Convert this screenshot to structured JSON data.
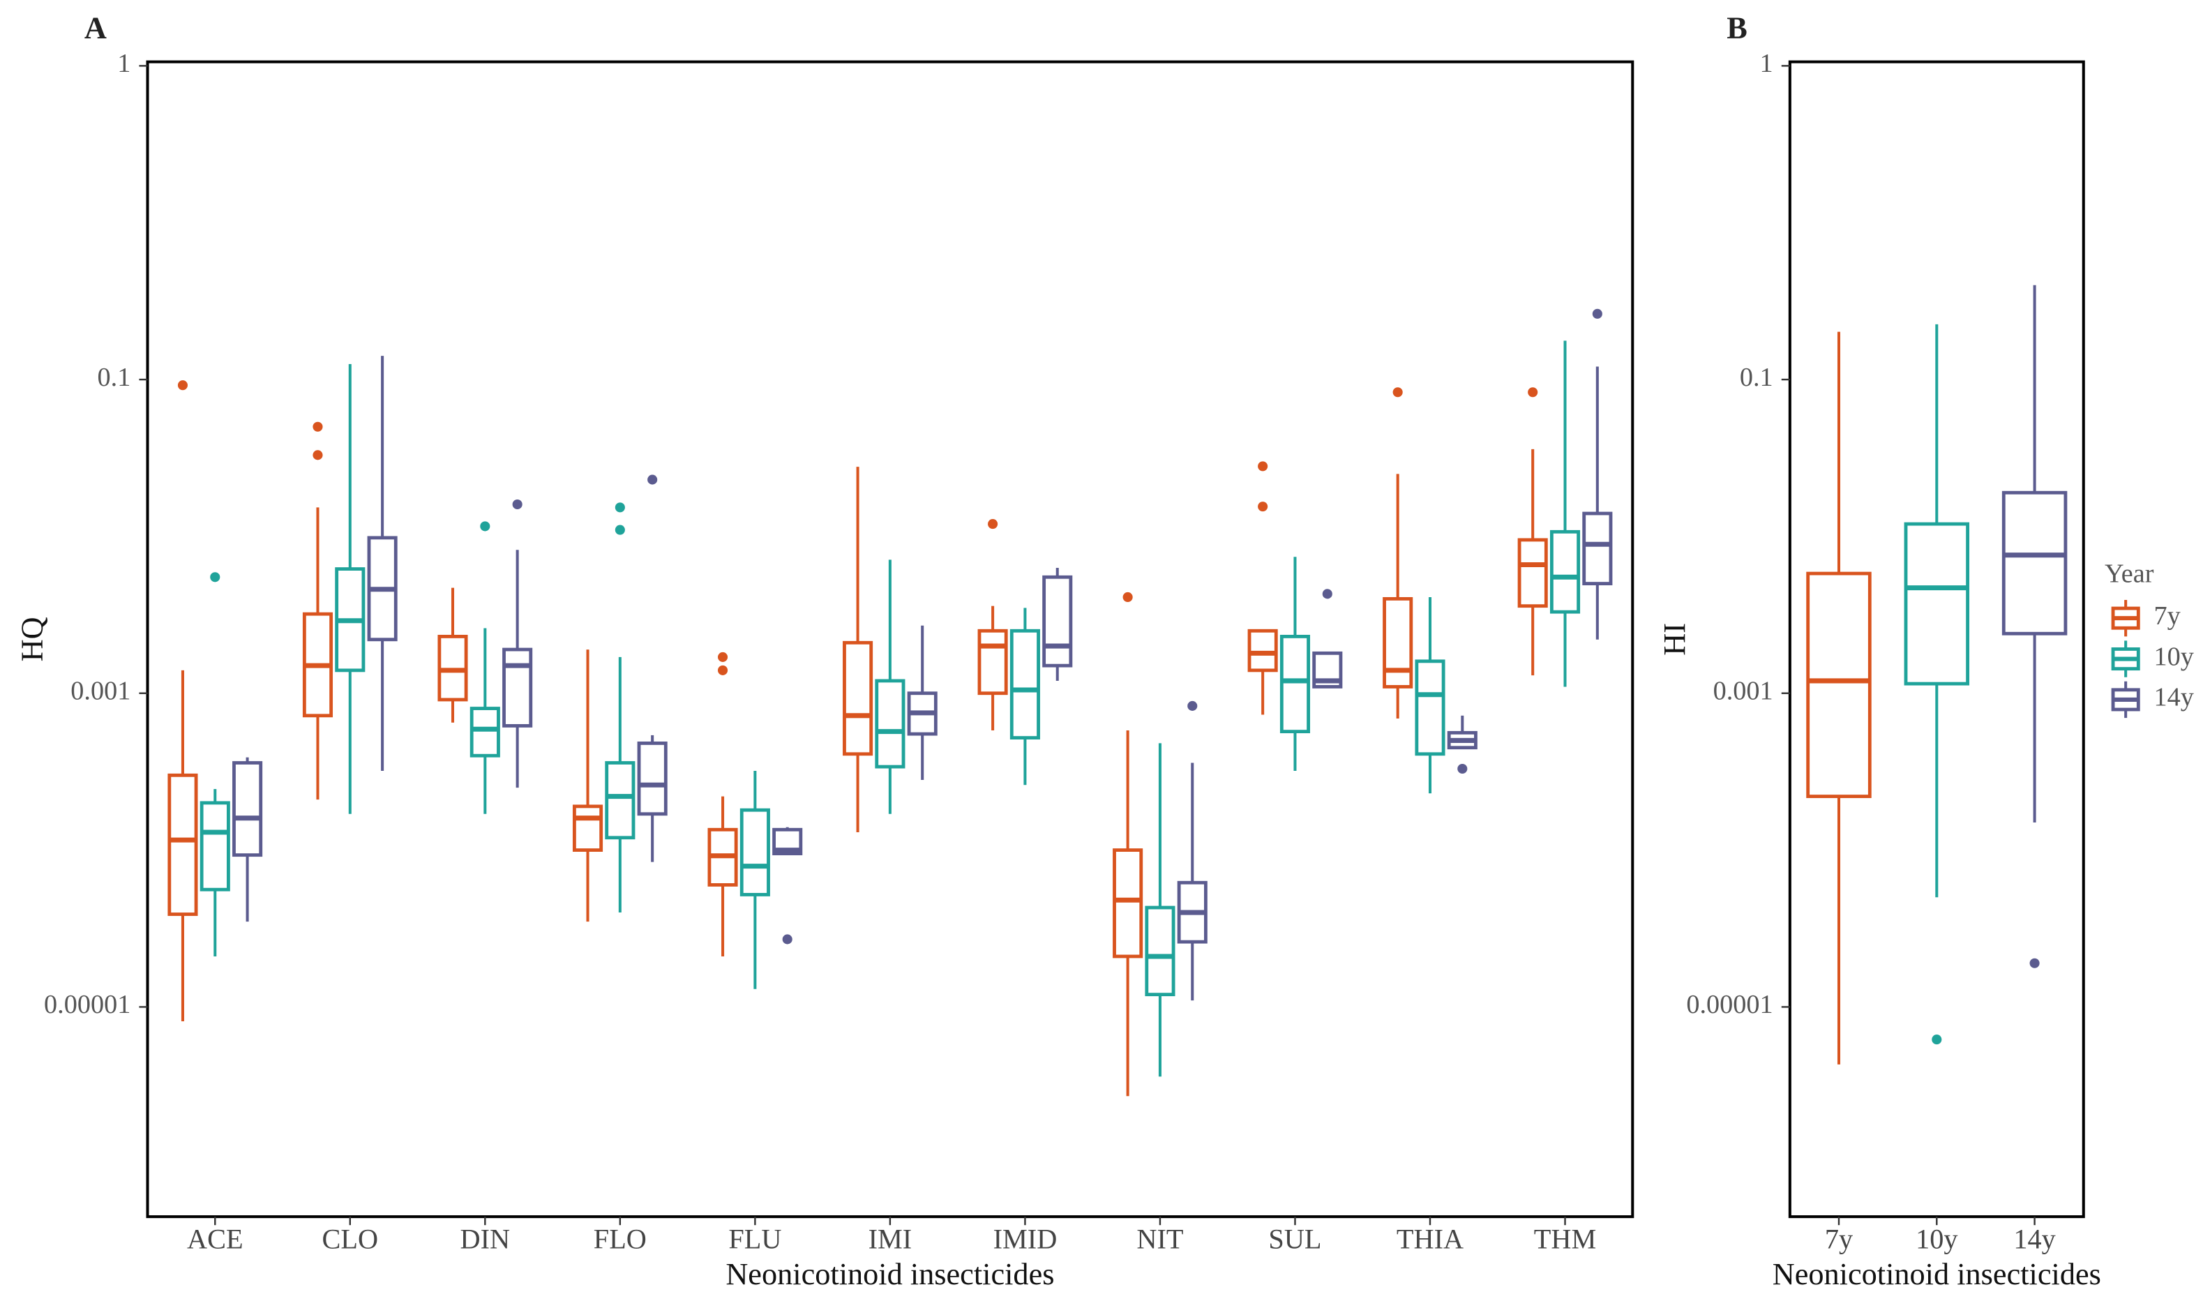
{
  "chart_data": [
    {
      "type": "box",
      "label": "A",
      "y_label": "HQ",
      "x_label": "Neonicotinoid insecticides",
      "scale": "log",
      "ylim": [
        4.6e-07,
        1.03
      ],
      "yticks": [
        1,
        0.1,
        0.001,
        1e-05
      ],
      "categories": [
        "ACE",
        "CLO",
        "DIN",
        "FLO",
        "FLU",
        "IMI",
        "IMID",
        "NIT",
        "SUL",
        "THIA",
        "THM"
      ],
      "series": [
        {
          "name": "7y",
          "color": "#d9541e",
          "values": [
            {
              "min": 8.1e-06,
              "q1": 3.9e-05,
              "median": 0.000116,
              "q3": 0.0003,
              "max": 0.0014,
              "outliers": [
                0.092
              ]
            },
            {
              "min": 0.00021,
              "q1": 0.00072,
              "median": 0.0015,
              "q3": 0.0032,
              "max": 0.0153,
              "outliers": [
                0.05,
                0.033
              ]
            },
            {
              "min": 0.00065,
              "q1": 0.00091,
              "median": 0.0014,
              "q3": 0.0023,
              "max": 0.0047
            },
            {
              "min": 3.5e-05,
              "q1": 0.0001,
              "median": 0.00016,
              "q3": 0.00019,
              "max": 0.0019
            },
            {
              "min": 2.1e-05,
              "q1": 6e-05,
              "median": 9.2e-05,
              "q3": 0.000135,
              "max": 0.00022,
              "outliers": [
                0.0017,
                0.0014
              ]
            },
            {
              "min": 0.00013,
              "q1": 0.00041,
              "median": 0.00072,
              "q3": 0.0021,
              "max": 0.0278
            },
            {
              "min": 0.00058,
              "q1": 0.001,
              "median": 0.002,
              "q3": 0.0025,
              "max": 0.0036,
              "outliers": [
                0.012
              ]
            },
            {
              "min": 2.7e-06,
              "q1": 2.1e-05,
              "median": 4.8e-05,
              "q3": 0.0001,
              "max": 0.00058,
              "outliers": [
                0.0041
              ]
            },
            {
              "min": 0.00073,
              "q1": 0.0014,
              "median": 0.0018,
              "q3": 0.0025,
              "max": 0.0025,
              "outliers": [
                0.028,
                0.0155
              ]
            },
            {
              "min": 0.00069,
              "q1": 0.0011,
              "median": 0.0014,
              "q3": 0.004,
              "max": 0.025,
              "outliers": [
                0.083
              ]
            },
            {
              "min": 0.0013,
              "q1": 0.0036,
              "median": 0.0066,
              "q3": 0.0095,
              "max": 0.036,
              "outliers": [
                0.083
              ]
            }
          ]
        },
        {
          "name": "10y",
          "color": "#1fa39a",
          "values": [
            {
              "min": 2.1e-05,
              "q1": 5.6e-05,
              "median": 0.00013,
              "q3": 0.0002,
              "max": 0.000245,
              "outliers": [
                0.0055
              ]
            },
            {
              "min": 0.00017,
              "q1": 0.0014,
              "median": 0.0029,
              "q3": 0.0062,
              "max": 0.112
            },
            {
              "min": 0.00017,
              "q1": 0.0004,
              "median": 0.00059,
              "q3": 0.0008,
              "max": 0.0026,
              "outliers": [
                0.0116
              ]
            },
            {
              "min": 4e-05,
              "q1": 0.00012,
              "median": 0.00022,
              "q3": 0.00036,
              "max": 0.0017,
              "outliers": [
                0.0153,
                0.011
              ]
            },
            {
              "min": 1.3e-05,
              "q1": 5.2e-05,
              "median": 7.9e-05,
              "q3": 0.00018,
              "max": 0.00032
            },
            {
              "min": 0.00017,
              "q1": 0.00034,
              "median": 0.00057,
              "q3": 0.0012,
              "max": 0.0071
            },
            {
              "min": 0.00026,
              "q1": 0.00052,
              "median": 0.00105,
              "q3": 0.0025,
              "max": 0.0035
            },
            {
              "min": 3.6e-06,
              "q1": 1.2e-05,
              "median": 2.1e-05,
              "q3": 4.3e-05,
              "max": 0.00048
            },
            {
              "min": 0.00032,
              "q1": 0.00057,
              "median": 0.0012,
              "q3": 0.0023,
              "max": 0.0074
            },
            {
              "min": 0.00023,
              "q1": 0.00041,
              "median": 0.00098,
              "q3": 0.0016,
              "max": 0.0041
            },
            {
              "min": 0.0011,
              "q1": 0.0033,
              "median": 0.0055,
              "q3": 0.0107,
              "max": 0.133
            }
          ]
        },
        {
          "name": "14y",
          "color": "#5b5b8f",
          "values": [
            {
              "min": 3.5e-05,
              "q1": 9.3e-05,
              "median": 0.00016,
              "q3": 0.00036,
              "max": 0.00039
            },
            {
              "min": 0.00032,
              "q1": 0.0022,
              "median": 0.0046,
              "q3": 0.0098,
              "max": 0.119
            },
            {
              "min": 0.00025,
              "q1": 0.00062,
              "median": 0.0015,
              "q3": 0.0019,
              "max": 0.0082,
              "outliers": [
                0.016
              ]
            },
            {
              "min": 8.4e-05,
              "q1": 0.00017,
              "median": 0.00026,
              "q3": 0.00048,
              "max": 0.00054,
              "outliers": [
                0.023
              ]
            },
            {
              "min": 9.5e-05,
              "q1": 9.5e-05,
              "median": 0.0001,
              "q3": 0.000135,
              "max": 0.00014,
              "outliers": [
                2.7e-05
              ]
            },
            {
              "min": 0.00028,
              "q1": 0.00055,
              "median": 0.00075,
              "q3": 0.001,
              "max": 0.0027
            },
            {
              "min": 0.0012,
              "q1": 0.0015,
              "median": 0.002,
              "q3": 0.0055,
              "max": 0.0063
            },
            {
              "min": 1.1e-05,
              "q1": 2.6e-05,
              "median": 4e-05,
              "q3": 6.2e-05,
              "max": 0.00036,
              "outliers": [
                0.00083
              ]
            },
            {
              "min": 0.0011,
              "q1": 0.0011,
              "median": 0.0012,
              "q3": 0.0018,
              "max": 0.0018,
              "outliers": [
                0.0043
              ]
            },
            {
              "min": 0.00045,
              "q1": 0.00045,
              "median": 0.0005,
              "q3": 0.00056,
              "max": 0.00072,
              "outliers": [
                0.00033
              ]
            },
            {
              "min": 0.0022,
              "q1": 0.005,
              "median": 0.0089,
              "q3": 0.014,
              "max": 0.11,
              "outliers": [
                0.162
              ]
            }
          ]
        }
      ]
    },
    {
      "type": "box",
      "label": "B",
      "y_label": "HI",
      "x_label": "Neonicotinoid insecticides",
      "scale": "log",
      "ylim": [
        4.6e-07,
        1.03
      ],
      "yticks": [
        1,
        0.1,
        0.001,
        1e-05
      ],
      "categories": [
        "7y",
        "10y",
        "14y"
      ],
      "colors": [
        "#d9541e",
        "#1fa39a",
        "#5b5b8f"
      ],
      "legend_title": "Year",
      "values": [
        {
          "min": 4.3e-06,
          "q1": 0.00022,
          "median": 0.0012,
          "q3": 0.0058,
          "max": 0.142
        },
        {
          "min": 5e-05,
          "q1": 0.00115,
          "median": 0.0047,
          "q3": 0.012,
          "max": 0.15,
          "outliers": [
            6.2e-06
          ]
        },
        {
          "min": 0.00015,
          "q1": 0.0024,
          "median": 0.0076,
          "q3": 0.019,
          "max": 0.2,
          "outliers": [
            1.9e-05
          ]
        }
      ]
    }
  ]
}
